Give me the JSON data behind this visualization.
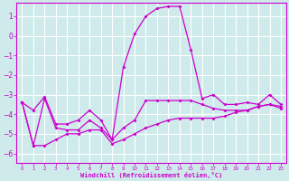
{
  "xlabel": "Windchill (Refroidissement éolien,°C)",
  "background_color": "#ceeaea",
  "grid_color": "#ffffff",
  "line_color": "#cc00cc",
  "xlim": [
    -0.5,
    23.5
  ],
  "ylim": [
    -6.5,
    1.7
  ],
  "yticks": [
    1,
    0,
    -1,
    -2,
    -3,
    -4,
    -5,
    -6
  ],
  "xticks": [
    0,
    1,
    2,
    3,
    4,
    5,
    6,
    7,
    8,
    9,
    10,
    11,
    12,
    13,
    14,
    15,
    16,
    17,
    18,
    19,
    20,
    21,
    22,
    23
  ],
  "line1_x": [
    0,
    1,
    2,
    3,
    4,
    5,
    6,
    7,
    8,
    9,
    10,
    11,
    12,
    13,
    14,
    15,
    16,
    17,
    18,
    19,
    20,
    21,
    22,
    23
  ],
  "line1_y": [
    -3.4,
    -3.8,
    -3.1,
    -4.5,
    -4.5,
    -4.3,
    -3.8,
    -4.3,
    -5.3,
    -1.6,
    0.1,
    1.0,
    1.4,
    1.5,
    1.5,
    -0.7,
    -3.2,
    -3.0,
    -3.5,
    -3.5,
    -3.4,
    -3.5,
    -3.0,
    -3.5
  ],
  "line2_x": [
    0,
    1,
    2,
    3,
    4,
    5,
    6,
    7,
    8,
    9,
    10,
    11,
    12,
    13,
    14,
    15,
    16,
    17,
    18,
    19,
    20,
    21,
    22,
    23
  ],
  "line2_y": [
    -3.4,
    -5.6,
    -3.2,
    -4.7,
    -4.8,
    -4.8,
    -4.3,
    -4.7,
    -5.3,
    -4.7,
    -4.3,
    -3.3,
    -3.3,
    -3.3,
    -3.3,
    -3.3,
    -3.5,
    -3.7,
    -3.8,
    -3.8,
    -3.8,
    -3.6,
    -3.5,
    -3.7
  ],
  "line3_x": [
    0,
    1,
    2,
    3,
    4,
    5,
    6,
    7,
    8,
    9,
    10,
    11,
    12,
    13,
    14,
    15,
    16,
    17,
    18,
    19,
    20,
    21,
    22,
    23
  ],
  "line3_y": [
    -3.4,
    -5.6,
    -5.6,
    -5.3,
    -5.0,
    -5.0,
    -4.8,
    -4.8,
    -5.5,
    -5.3,
    -5.0,
    -4.7,
    -4.5,
    -4.3,
    -4.2,
    -4.2,
    -4.2,
    -4.2,
    -4.1,
    -3.9,
    -3.8,
    -3.6,
    -3.5,
    -3.6
  ]
}
